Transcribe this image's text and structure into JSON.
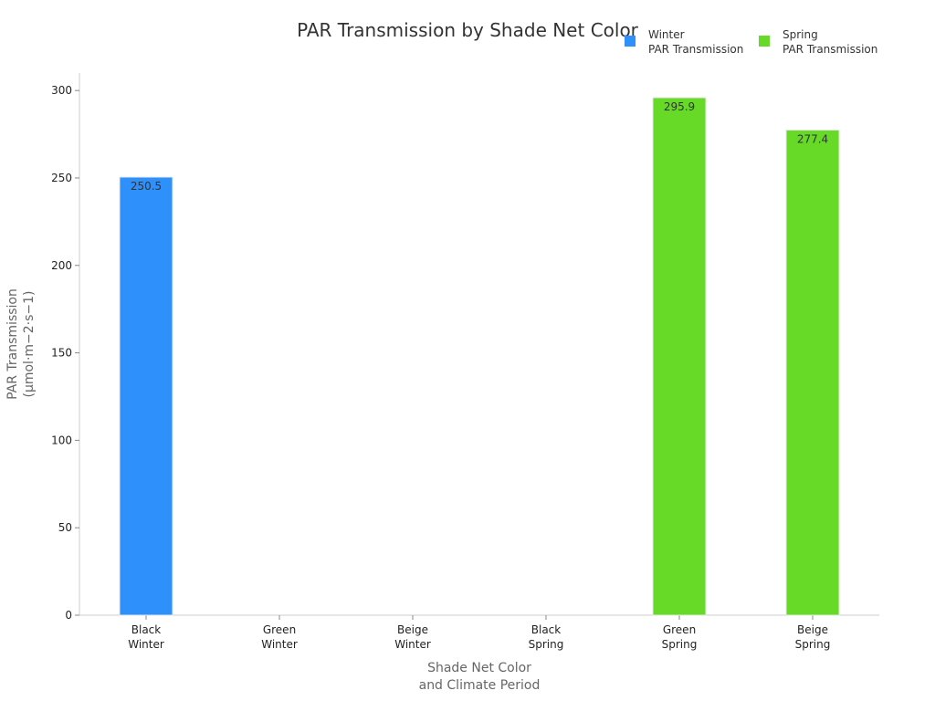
{
  "chart_data": {
    "type": "bar",
    "title": "PAR Transmission by Shade Net Color",
    "xlabel": [
      "Shade Net Color",
      "and Climate Period"
    ],
    "ylabel": [
      "PAR Transmission",
      "(µmol·m−2·s−1)"
    ],
    "ylim": [
      0,
      310
    ],
    "yticks": [
      0,
      50,
      100,
      150,
      200,
      250,
      300
    ],
    "grid": false,
    "legend_position": "top-right",
    "categories": [
      [
        "Black",
        "Winter"
      ],
      [
        "Green",
        "Winter"
      ],
      [
        "Beige",
        "Winter"
      ],
      [
        "Black",
        "Spring"
      ],
      [
        "Green",
        "Spring"
      ],
      [
        "Beige",
        "Spring"
      ]
    ],
    "series": [
      {
        "name": [
          "Winter",
          "PAR Transmission"
        ],
        "color": "#2e90fa",
        "values": [
          250.5,
          null,
          null,
          null,
          null,
          null
        ],
        "labels": [
          "250.5",
          null,
          null,
          null,
          null,
          null
        ]
      },
      {
        "name": [
          "Spring",
          "PAR Transmission"
        ],
        "color": "#66da26",
        "values": [
          null,
          null,
          null,
          null,
          295.9,
          277.4
        ],
        "labels": [
          null,
          null,
          null,
          null,
          "295.9",
          "277.4"
        ]
      }
    ]
  }
}
